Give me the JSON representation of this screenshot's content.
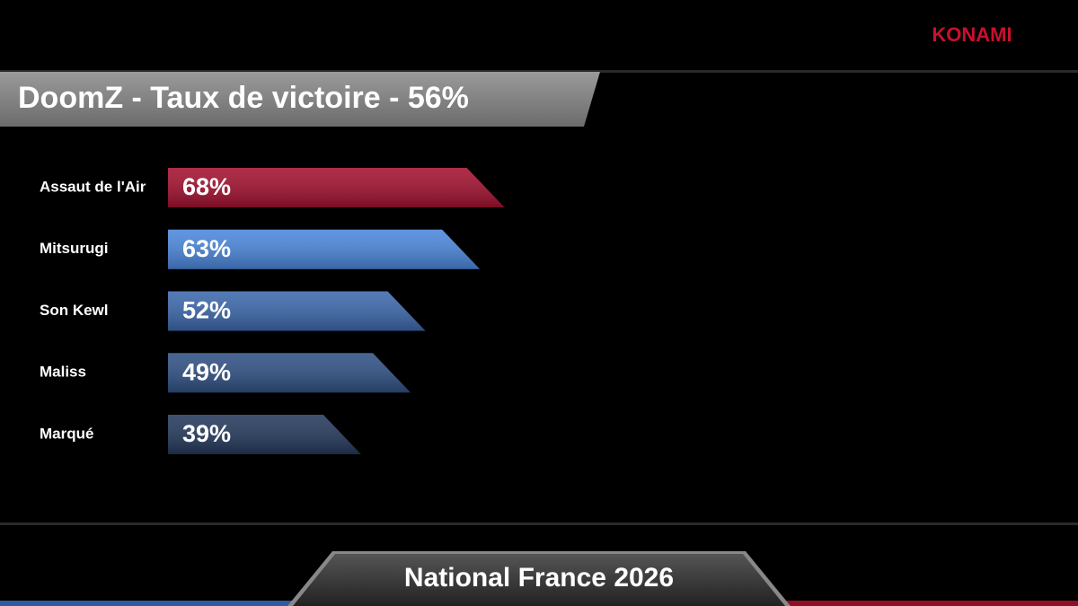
{
  "chart_data": {
    "type": "bar",
    "orientation": "horizontal",
    "brand": "KONAMI",
    "title": "DoomZ - Taux de victoire - 56%",
    "footer": "National France 2026",
    "categories": [
      "Assaut de l'Air",
      "Mitsurugi",
      "Son Kewl",
      "Maliss",
      "Marqué"
    ],
    "values": [
      68,
      63,
      52,
      49,
      39
    ],
    "value_labels": [
      "68%",
      "63%",
      "52%",
      "49%",
      "39%"
    ],
    "colors": [
      "#a3102f",
      "#4b87db",
      "#3b68ab",
      "#2f5184",
      "#24395c"
    ],
    "xlim": [
      0,
      100
    ]
  }
}
